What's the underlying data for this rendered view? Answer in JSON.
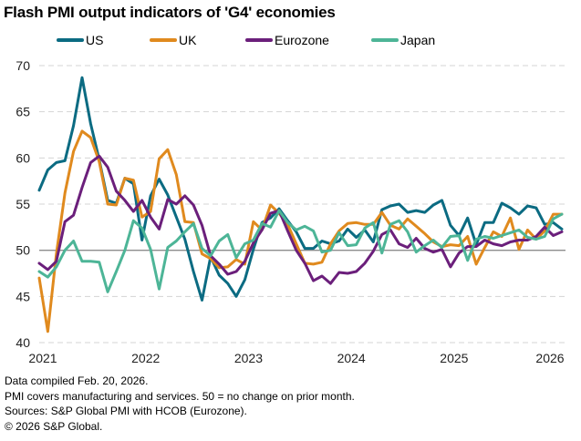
{
  "chart_data": {
    "type": "line",
    "title": "Flash PMI output indicators of 'G4' economies",
    "xlabel": "",
    "ylabel": "",
    "ylim": [
      40,
      70
    ],
    "yticks": [
      40,
      45,
      50,
      55,
      60,
      65,
      70
    ],
    "x_start": "2021-01",
    "x_end": "2026-02",
    "xtick_labels": [
      "2021",
      "2022",
      "2023",
      "2024",
      "2025",
      "2026"
    ],
    "reference_line": 50,
    "grid": "horizontal dashed",
    "legend_position": "top",
    "series": [
      {
        "name": "US",
        "color": "#0b6b82",
        "values": [
          56.5,
          58.7,
          59.5,
          59.7,
          63.5,
          68.7,
          63.7,
          59.8,
          55.4,
          55.1,
          57.8,
          57.2,
          51.1,
          55.9,
          57.7,
          56.0,
          53.6,
          51.2,
          47.7,
          44.6,
          49.3,
          47.3,
          46.4,
          45.0,
          46.8,
          50.1,
          53.0,
          53.5,
          54.5,
          53.2,
          52.0,
          50.2,
          50.2,
          51.0,
          50.7,
          51.0,
          52.3,
          51.4,
          52.2,
          50.9,
          54.4,
          54.8,
          55.0,
          54.1,
          54.3,
          54.1,
          54.9,
          55.4,
          52.7,
          51.6,
          53.5,
          50.6,
          53.0,
          53.0,
          55.1,
          54.6,
          53.9,
          54.8,
          54.6,
          52.8,
          53.0,
          52.3
        ]
      },
      {
        "name": "UK",
        "color": "#e08a1e",
        "values": [
          47.0,
          41.2,
          49.6,
          56.2,
          60.7,
          62.9,
          62.2,
          59.6,
          55.0,
          54.9,
          57.8,
          57.6,
          53.6,
          54.2,
          59.9,
          60.9,
          58.2,
          53.1,
          53.0,
          49.6,
          49.1,
          48.1,
          48.2,
          49.0,
          48.5,
          53.1,
          52.2,
          54.9,
          54.0,
          52.8,
          50.7,
          48.6,
          48.5,
          48.7,
          50.7,
          52.1,
          52.9,
          53.0,
          52.8,
          52.8,
          54.1,
          52.7,
          52.3,
          53.4,
          52.6,
          51.8,
          50.9,
          50.4,
          50.6,
          50.5,
          51.5,
          48.5,
          50.3,
          52.0,
          51.5,
          53.5,
          50.1,
          52.2,
          51.2,
          52.1,
          53.9,
          53.9
        ]
      },
      {
        "name": "Eurozone",
        "color": "#6b1f7b",
        "values": [
          48.6,
          47.9,
          48.8,
          53.1,
          53.8,
          56.8,
          59.5,
          60.2,
          59.0,
          56.4,
          55.4,
          54.2,
          55.4,
          53.6,
          52.3,
          55.5,
          55.0,
          55.9,
          54.9,
          52.7,
          49.4,
          48.5,
          47.4,
          47.7,
          48.8,
          50.8,
          52.2,
          54.0,
          54.3,
          52.1,
          50.0,
          48.6,
          46.7,
          47.2,
          46.4,
          47.6,
          47.5,
          47.7,
          48.6,
          49.9,
          51.7,
          52.2,
          50.7,
          50.3,
          51.3,
          50.2,
          49.8,
          50.1,
          48.2,
          49.7,
          50.4,
          50.4,
          51.1,
          50.7,
          50.5,
          50.9,
          51.1,
          51.1,
          51.5,
          52.5,
          51.6,
          52.0
        ]
      },
      {
        "name": "Japan",
        "color": "#4db597",
        "values": [
          47.7,
          47.1,
          48.2,
          50.0,
          51.0,
          48.8,
          48.8,
          48.7,
          45.5,
          47.7,
          50.0,
          53.2,
          52.4,
          50.1,
          45.8,
          50.3,
          51.0,
          52.0,
          52.9,
          50.2,
          49.4,
          51.0,
          51.7,
          49.2,
          50.7,
          51.1,
          52.9,
          52.5,
          54.3,
          53.0,
          52.2,
          52.6,
          52.1,
          49.8,
          50.0,
          51.9,
          50.5,
          50.6,
          52.4,
          53.0,
          49.7,
          52.8,
          53.2,
          52.0,
          49.8,
          50.5,
          51.1,
          50.3,
          51.5,
          51.6,
          48.9,
          51.2,
          51.5,
          51.3,
          51.6,
          51.9,
          52.2,
          51.4,
          51.2,
          51.5,
          53.4,
          53.9
        ]
      }
    ]
  },
  "legend": {
    "items": [
      {
        "label": "US",
        "color": "#0b6b82"
      },
      {
        "label": "UK",
        "color": "#e08a1e"
      },
      {
        "label": "Eurozone",
        "color": "#6b1f7b"
      },
      {
        "label": "Japan",
        "color": "#4db597"
      }
    ]
  },
  "footer": {
    "line1": "Data compiled Feb. 20, 2026.",
    "line2": "PMI covers manufacturing and services. 50 = no change on prior month.",
    "line3": "Sources: S&P Global PMI with HCOB (Eurozone).",
    "line4": "© 2026 S&P Global."
  }
}
